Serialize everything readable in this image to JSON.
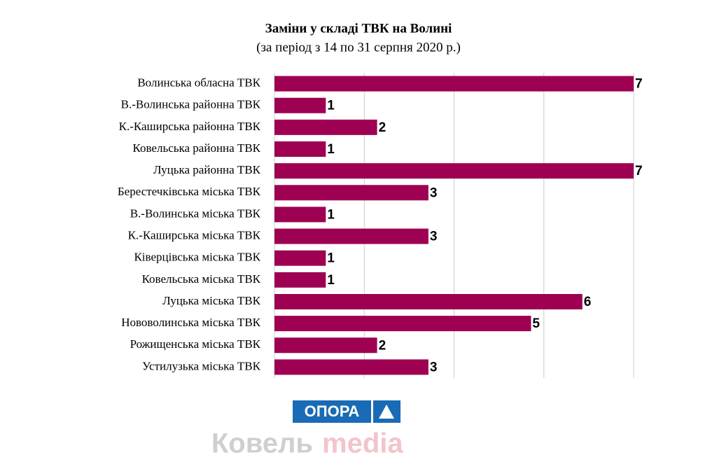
{
  "chart_data": {
    "type": "barh",
    "title": "Заміни у складі ТВК на Волині",
    "subtitle": "(за період з 14 по 31 серпня 2020 р.)",
    "categories": [
      "Волинська обласна ТВК",
      "В.-Волинська районна ТВК",
      "К.-Каширська районна ТВК",
      "Ковельська районна ТВК",
      "Луцька районна ТВК",
      "Берестечківська міська ТВК",
      "В.-Волинська міська ТВК",
      "К.-Каширська міська ТВК",
      "Ківерцівська міська ТВК",
      "Ковельська міська ТВК",
      "Луцька міська ТВК",
      "Нововолинська міська ТВК",
      "Рожищенська міська ТВК",
      "Устилузька міська ТВК"
    ],
    "values": [
      7,
      1,
      2,
      1,
      7,
      3,
      1,
      3,
      1,
      1,
      6,
      5,
      2,
      3
    ],
    "color": "#9e0052",
    "xlim": [
      0,
      7
    ],
    "xticks": [
      0,
      1.75,
      3.5,
      5.25,
      7
    ],
    "grid": true
  },
  "logo": "ОПОРА",
  "watermark": [
    "Ковель",
    "media"
  ]
}
